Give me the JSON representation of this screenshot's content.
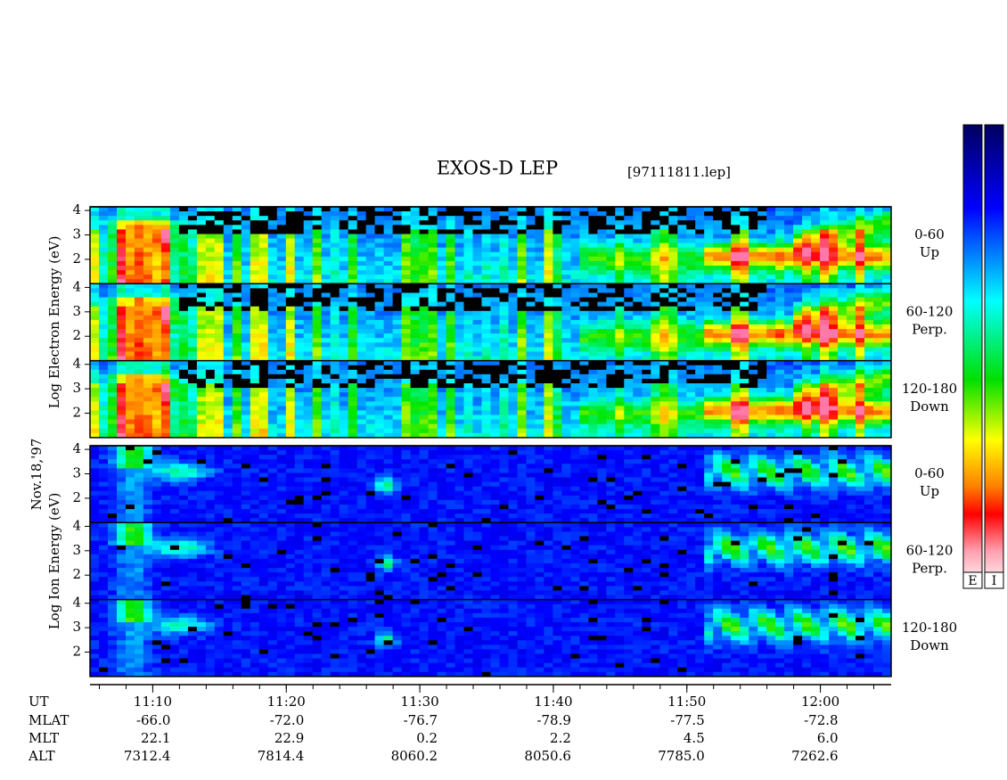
{
  "chart_data": {
    "type": "spectrogram",
    "title": "EXOS-D LEP",
    "file": "[97111811.lep]",
    "date": "Nov.18,'97",
    "xlim": [
      665.3,
      725.3
    ],
    "xticks": [
      {
        "value": 670,
        "label": "11:10"
      },
      {
        "value": 680,
        "label": "11:20"
      },
      {
        "value": 690,
        "label": "11:30"
      },
      {
        "value": 700,
        "label": "11:40"
      },
      {
        "value": 710,
        "label": "11:50"
      },
      {
        "value": 720,
        "label": "12:00"
      }
    ],
    "ylim": [
      1,
      4.15
    ],
    "yticks": [
      2,
      3,
      4
    ],
    "groups": [
      {
        "label": "Log Electron Energy (eV)",
        "panels": [
          {
            "label": [
              "0-60",
              "Up"
            ]
          },
          {
            "label": [
              "60-120",
              "Perp."
            ]
          },
          {
            "label": [
              "120-180",
              "Down"
            ]
          }
        ]
      },
      {
        "label": "Log Ion Energy (eV)",
        "panels": [
          {
            "label": [
              "0-60",
              "Up"
            ]
          },
          {
            "label": [
              "60-120",
              "Perp."
            ]
          },
          {
            "label": [
              "120-180",
              "Down"
            ]
          }
        ]
      }
    ],
    "ephemeris": [
      {
        "name": "UT"
      },
      {
        "name": "MLAT",
        "values": [
          "-66.0",
          "-72.0",
          "-76.7",
          "-78.9",
          "-77.5",
          "-72.8"
        ]
      },
      {
        "name": "MLT",
        "values": [
          "22.1",
          "22.9",
          "0.2",
          "2.2",
          "4.5",
          "6.0"
        ]
      },
      {
        "name": "ALT",
        "values": [
          "7312.4",
          "7814.4",
          "8060.2",
          "8050.6",
          "7785.0",
          "7262.6"
        ]
      }
    ],
    "colorbars": [
      "E",
      "I"
    ]
  }
}
